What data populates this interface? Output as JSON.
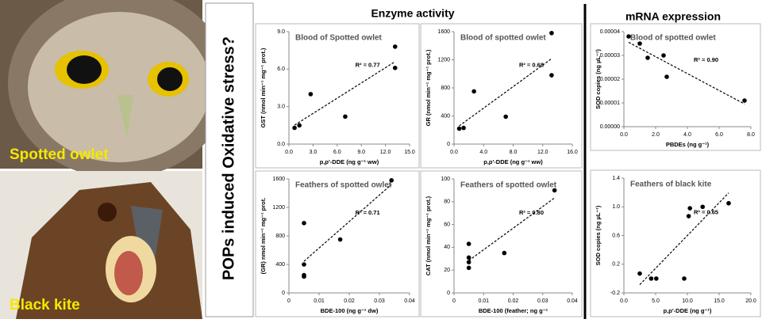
{
  "photos": [
    {
      "label": "Spotted owlet"
    },
    {
      "label": "Black kite"
    }
  ],
  "side_title": "POPs induced Oxidative stress?",
  "sections": [
    "Enzyme activity",
    "mRNA expression"
  ],
  "chart_data": [
    {
      "type": "scatter",
      "title": "Blood of Spotted owlet",
      "annotation": "R² = 0.77",
      "xlabel": "p,p'-DDE (ng g⁻¹ ww)",
      "ylabel": "GST (nmol min⁻¹ mg⁻¹ prot.)",
      "x": [
        0.7,
        1.3,
        2.7,
        7.0,
        13.2,
        13.2
      ],
      "values": [
        1.3,
        1.5,
        4.0,
        2.2,
        7.8,
        6.1
      ],
      "xlim": [
        0,
        15
      ],
      "ylim": [
        0,
        9
      ],
      "xticks": [
        {
          "value": 0,
          "label": "0.0"
        },
        {
          "value": 3,
          "label": "3.0"
        },
        {
          "value": 6,
          "label": "6.0"
        },
        {
          "value": 9,
          "label": "9.0"
        },
        {
          "value": 12,
          "label": "12.0"
        },
        {
          "value": 15,
          "label": "15.0"
        }
      ],
      "yticks": [
        {
          "value": 0,
          "label": "0.0"
        },
        {
          "value": 3,
          "label": "3.0"
        },
        {
          "value": 6,
          "label": "6.0"
        },
        {
          "value": 9,
          "label": "9.0"
        }
      ],
      "color": "#000000",
      "trendline": true
    },
    {
      "type": "scatter",
      "title": "Blood of spotted owlet",
      "annotation": "R² = 0.68",
      "xlabel": "p,p'-DDE (ng g⁻¹ ww)",
      "ylabel": "GR (nmol min⁻¹ mg⁻¹ prot.)",
      "x": [
        0.7,
        1.3,
        2.7,
        7.0,
        13.2,
        13.2
      ],
      "values": [
        220,
        230,
        750,
        390,
        1580,
        980
      ],
      "xlim": [
        0,
        16
      ],
      "ylim": [
        0,
        1600
      ],
      "xticks": [
        {
          "value": 0,
          "label": "0.0"
        },
        {
          "value": 4,
          "label": "4.0"
        },
        {
          "value": 8,
          "label": "8.0"
        },
        {
          "value": 12,
          "label": "12.0"
        },
        {
          "value": 16,
          "label": "16.0"
        }
      ],
      "yticks": [
        0,
        400,
        800,
        1200,
        1600
      ],
      "color": "#000000",
      "trendline": true
    },
    {
      "type": "scatter",
      "title": "Blood of spotted owlet",
      "annotation": "R² = 0.90",
      "xlabel": "PBDEs (ng g⁻¹)",
      "ylabel": "SOD copies (ng µL⁻¹)",
      "x": [
        0.3,
        1.0,
        1.5,
        2.5,
        2.7,
        7.6
      ],
      "values": [
        3.8e-05,
        3.5e-05,
        2.9e-05,
        3e-05,
        2.1e-05,
        1.1e-05
      ],
      "xlim": [
        0,
        8
      ],
      "ylim": [
        0,
        4e-05
      ],
      "xticks": [
        {
          "value": 0,
          "label": "0.0"
        },
        {
          "value": 2,
          "label": "2.0"
        },
        {
          "value": 4,
          "label": "4.0"
        },
        {
          "value": 6,
          "label": "6.0"
        },
        {
          "value": 8,
          "label": "8.0"
        }
      ],
      "yticks": [
        {
          "value": 0,
          "label": "0.00000"
        },
        1e-05,
        2e-05,
        3e-05,
        4e-05
      ],
      "color": "#000000",
      "trendline": true
    },
    {
      "type": "scatter",
      "title": "Feathers of spotted owlet",
      "annotation": "R² = 0.71",
      "xlabel": "BDE-100 (ng g⁻¹ dw)",
      "ylabel": "(GR) nmol min⁻¹ mg⁻¹ prot.",
      "x": [
        0.005,
        0.005,
        0.005,
        0.005,
        0.017,
        0.034
      ],
      "values": [
        980,
        400,
        250,
        230,
        750,
        1580
      ],
      "xlim": [
        0,
        0.04
      ],
      "ylim": [
        0,
        1600
      ],
      "xticks": [
        0,
        0.01,
        0.02,
        0.03,
        0.04
      ],
      "yticks": [
        0,
        400,
        800,
        1200,
        1600
      ],
      "color": "#000000",
      "trendline": true
    },
    {
      "type": "scatter",
      "title": "Feathers of spotted owlet",
      "annotation": "R² = 0.80",
      "xlabel": "BDE-100 (feather; ng g⁻¹",
      "ylabel": "CAT (nmol min⁻¹ mg⁻¹ prot.)",
      "x": [
        0.005,
        0.005,
        0.005,
        0.005,
        0.017,
        0.034
      ],
      "values": [
        43,
        31,
        27,
        22,
        35,
        90
      ],
      "xlim": [
        0,
        0.04
      ],
      "ylim": [
        0,
        100
      ],
      "xticks": [
        0,
        0.01,
        0.02,
        0.03,
        0.04
      ],
      "yticks": [
        0,
        20,
        40,
        60,
        80,
        100
      ],
      "color": "#000000",
      "trendline": true
    },
    {
      "type": "scatter",
      "title": "Feathers of black kite",
      "annotation": "R² = 0.65",
      "xlabel": "p,p'-DDE (ng g⁻¹)",
      "ylabel": "SOD copies (ng µL⁻¹)",
      "x": [
        2.5,
        4.3,
        5.1,
        9.5,
        10.2,
        10.4,
        12.4,
        16.5
      ],
      "values": [
        0.07,
        0,
        0,
        0,
        0.87,
        0.98,
        1.0,
        1.05
      ],
      "xlim": [
        0,
        20
      ],
      "ylim": [
        -0.2,
        1.4
      ],
      "xticks": [
        {
          "value": 0,
          "label": "0.0"
        },
        {
          "value": 5,
          "label": "5.0"
        },
        {
          "value": 10,
          "label": "10.0"
        },
        {
          "value": 15,
          "label": "15.0"
        },
        {
          "value": 20,
          "label": "20.0"
        }
      ],
      "yticks": [
        -0.2,
        0.2,
        0.6,
        {
          "value": 1,
          "label": "1.0"
        },
        1.4
      ],
      "color": "#000000",
      "trendline": true
    }
  ]
}
